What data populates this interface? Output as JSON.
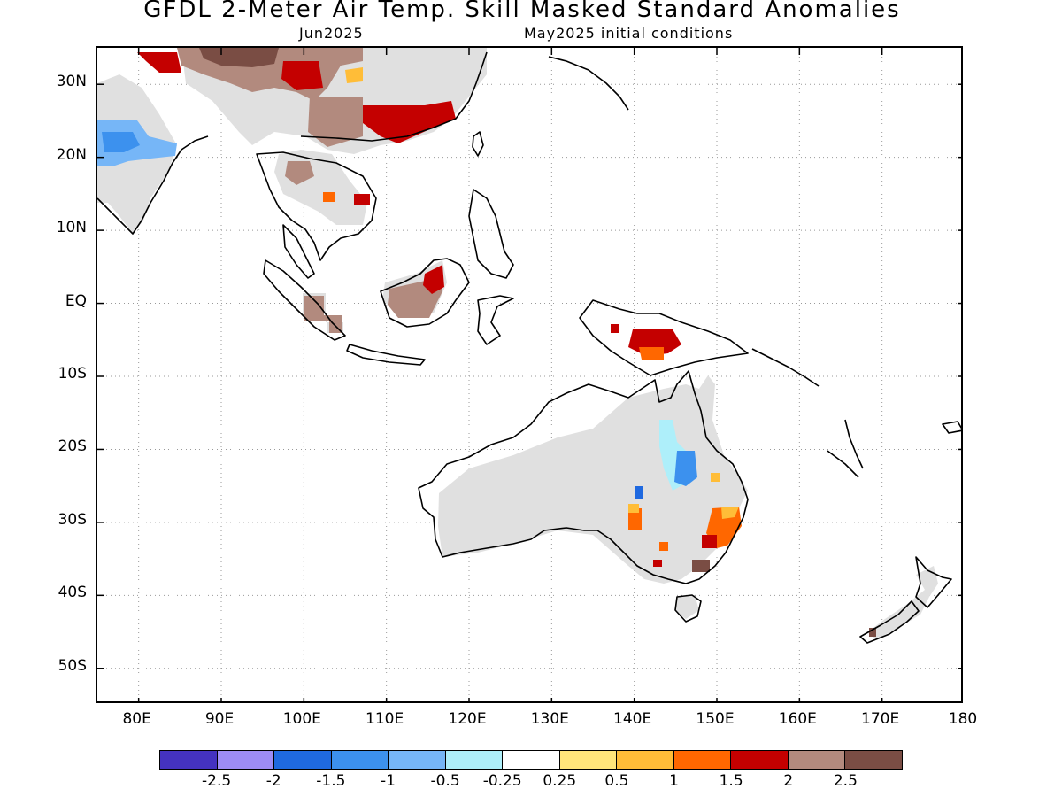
{
  "title": "GFDL 2-Meter Air Temp. Skill Masked Standard Anomalies",
  "subtitle_left": "Jun2025",
  "subtitle_right": "May2025 initial conditions",
  "map": {
    "lon_range": [
      75,
      180
    ],
    "lat_range": [
      -55,
      35
    ],
    "grid": "dotted",
    "lat_labels": [
      "30N",
      "20N",
      "10N",
      "EQ",
      "10S",
      "20S",
      "30S",
      "40S",
      "50S"
    ],
    "lon_labels": [
      "80E",
      "90E",
      "100E",
      "110E",
      "120E",
      "130E",
      "140E",
      "150E",
      "160E",
      "170E",
      "180"
    ],
    "mask_color": "#e0e0e0"
  },
  "colorbar": {
    "colors": [
      "#4432bf",
      "#9e8cf5",
      "#1f69e0",
      "#3c91ee",
      "#76b6f7",
      "#aeeffa",
      "#ffffff",
      "#ffe57a",
      "#ffbd38",
      "#ff6700",
      "#c40000",
      "#b28a7e",
      "#7a4d44"
    ],
    "labels": [
      "-2.5",
      "-2",
      "-1.5",
      "-1",
      "-0.5",
      "-0.25",
      "0.25",
      "0.5",
      "1",
      "1.5",
      "2",
      "2.5"
    ]
  }
}
